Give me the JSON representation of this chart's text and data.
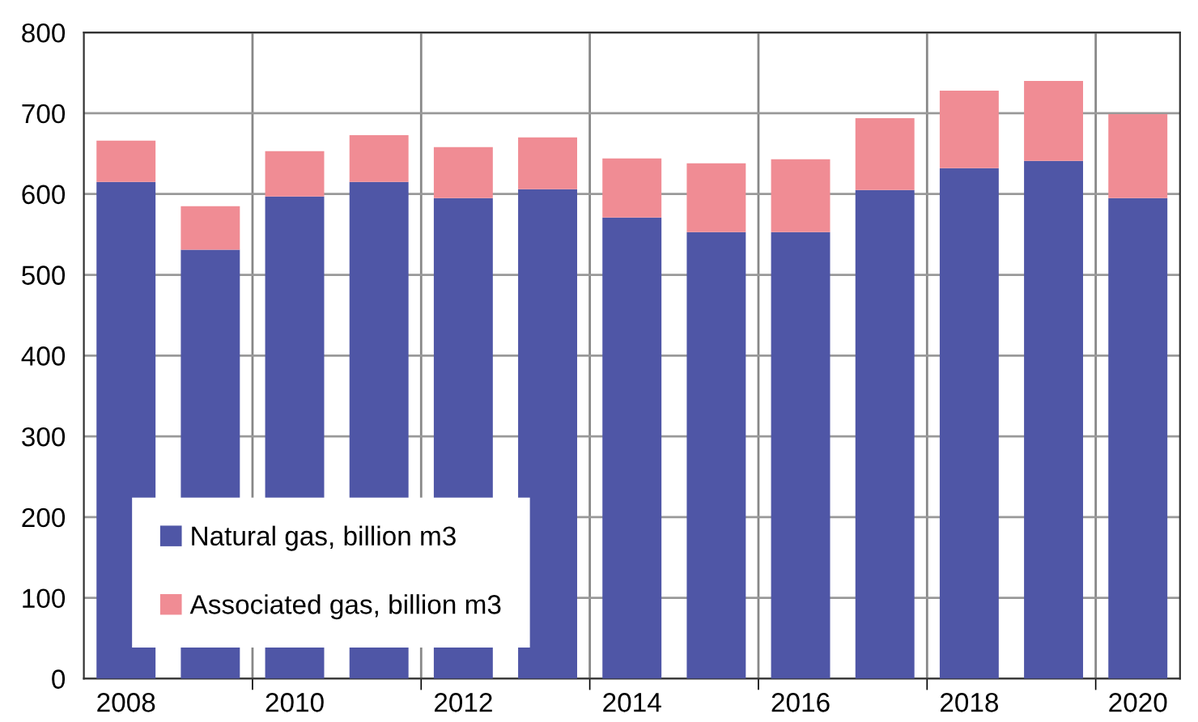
{
  "chart_data": {
    "type": "bar",
    "stacked": true,
    "categories": [
      "2008",
      null,
      "2010",
      null,
      "2012",
      null,
      "2014",
      null,
      "2016",
      null,
      "2018",
      null,
      "2020"
    ],
    "series": [
      {
        "name": "Natural gas, billion m3",
        "color": "#4f56a6",
        "values": [
          615,
          531,
          597,
          615,
          595,
          606,
          571,
          553,
          553,
          605,
          632,
          641,
          595
        ]
      },
      {
        "name": "Associated gas, billion m3",
        "color": "#f08c94",
        "values": [
          51,
          54,
          56,
          58,
          63,
          64,
          73,
          85,
          90,
          89,
          96,
          99,
          104
        ]
      }
    ],
    "ylim": [
      0,
      800
    ],
    "yticks": [
      0,
      100,
      200,
      300,
      400,
      500,
      600,
      700,
      800
    ],
    "grid": true,
    "legend": "bottom left"
  }
}
